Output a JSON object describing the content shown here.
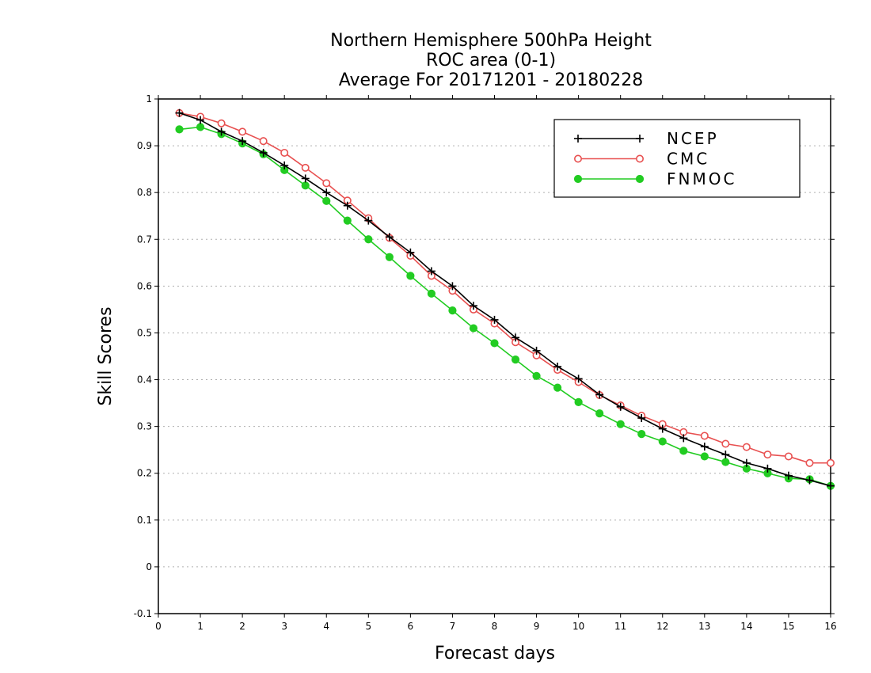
{
  "chart_data": {
    "type": "line",
    "title": [
      "Northern Hemisphere 500hPa Height",
      "ROC area (0-1)",
      "Average For 20171201 - 20180228"
    ],
    "xlabel": "Forecast days",
    "ylabel": "Skill Scores",
    "xlim": [
      0,
      16
    ],
    "ylim": [
      -0.1,
      1
    ],
    "xticks": [
      0,
      1,
      2,
      3,
      4,
      5,
      6,
      7,
      8,
      9,
      10,
      11,
      12,
      13,
      14,
      15,
      16
    ],
    "yticks": [
      -0.1,
      0,
      0.1,
      0.2,
      0.3,
      0.4,
      0.5,
      0.6,
      0.7,
      0.8,
      0.9,
      1
    ],
    "ytick_labels": [
      "-0.1",
      "0",
      "0.1",
      "0.2",
      "0.3",
      "0.4",
      "0.5",
      "0.6",
      "0.7",
      "0.8",
      "0.9",
      "1"
    ],
    "grid": "horizontal-dotted",
    "legend_position": "top-right",
    "x": [
      0.5,
      1,
      1.5,
      2,
      2.5,
      3,
      3.5,
      4,
      4.5,
      5,
      5.5,
      6,
      6.5,
      7,
      7.5,
      8,
      8.5,
      9,
      9.5,
      10,
      10.5,
      11,
      11.5,
      12,
      12.5,
      13,
      13.5,
      14,
      14.5,
      15,
      15.5,
      16
    ],
    "series": [
      {
        "name": "NCEP",
        "color": "#000000",
        "marker": "plus",
        "values": [
          0.97,
          0.955,
          0.93,
          0.91,
          0.885,
          0.858,
          0.83,
          0.8,
          0.772,
          0.74,
          0.705,
          0.672,
          0.632,
          0.6,
          0.558,
          0.528,
          0.49,
          0.462,
          0.428,
          0.402,
          0.368,
          0.342,
          0.318,
          0.295,
          0.275,
          0.257,
          0.24,
          0.222,
          0.21,
          0.195,
          0.185,
          0.173
        ]
      },
      {
        "name": "CMC",
        "color": "#e85050",
        "marker": "open-circle",
        "values": [
          0.97,
          0.962,
          0.948,
          0.93,
          0.91,
          0.885,
          0.853,
          0.82,
          0.783,
          0.745,
          0.703,
          0.665,
          0.622,
          0.59,
          0.55,
          0.52,
          0.48,
          0.452,
          0.421,
          0.395,
          0.367,
          0.345,
          0.323,
          0.305,
          0.288,
          0.28,
          0.263,
          0.256,
          0.24,
          0.236,
          0.222,
          0.222
        ]
      },
      {
        "name": "FNMOC",
        "color": "#22cc22",
        "marker": "filled-circle",
        "values": [
          0.935,
          0.94,
          0.925,
          0.905,
          0.882,
          0.848,
          0.815,
          0.782,
          0.74,
          0.7,
          0.662,
          0.622,
          0.584,
          0.548,
          0.51,
          0.478,
          0.443,
          0.408,
          0.383,
          0.352,
          0.328,
          0.305,
          0.284,
          0.268,
          0.248,
          0.236,
          0.224,
          0.21,
          0.2,
          0.189,
          0.187,
          0.173
        ]
      }
    ]
  }
}
